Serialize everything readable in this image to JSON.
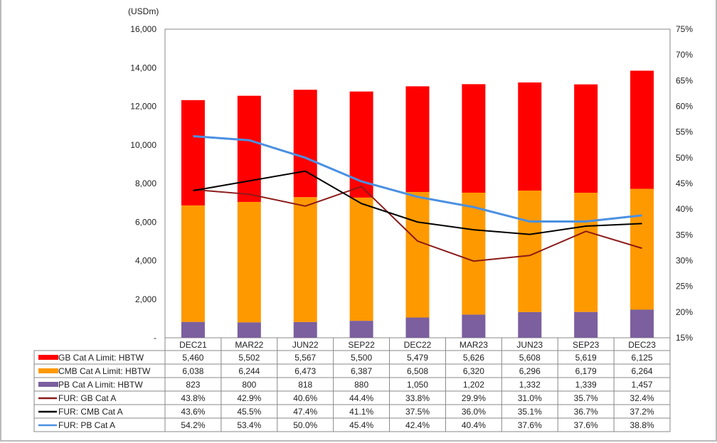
{
  "chart_data": {
    "type": "bar",
    "stacked": true,
    "unit_label": "(USDm)",
    "categories": [
      "DEC21",
      "MAR22",
      "JUN22",
      "SEP22",
      "DEC22",
      "MAR23",
      "JUN23",
      "SEP23",
      "DEC23"
    ],
    "y_left": {
      "range": [
        0,
        16000
      ],
      "ticks": [
        "-",
        "2,000",
        "4,000",
        "6,000",
        "8,000",
        "10,000",
        "12,000",
        "14,000",
        "16,000"
      ],
      "tick_values": [
        0,
        2000,
        4000,
        6000,
        8000,
        10000,
        12000,
        14000,
        16000
      ]
    },
    "y_right": {
      "range": [
        15,
        75
      ],
      "ticks": [
        "15%",
        "20%",
        "25%",
        "30%",
        "35%",
        "40%",
        "45%",
        "50%",
        "55%",
        "60%",
        "65%",
        "70%",
        "75%"
      ],
      "tick_values": [
        15,
        20,
        25,
        30,
        35,
        40,
        45,
        50,
        55,
        60,
        65,
        70,
        75
      ]
    },
    "grid": false,
    "legend": "data-table-below",
    "bar_series": [
      {
        "name": "PB Cat A Limit: HBTW",
        "color": "#7b5f9e",
        "values": [
          823,
          800,
          818,
          880,
          1050,
          1202,
          1332,
          1339,
          1457
        ],
        "labels": [
          "823",
          "800",
          "818",
          "880",
          "1,050",
          "1,202",
          "1,332",
          "1,339",
          "1,457"
        ]
      },
      {
        "name": "CMB Cat A Limit: HBTW",
        "color": "#ff9900",
        "values": [
          6038,
          6244,
          6473,
          6387,
          6508,
          6320,
          6296,
          6179,
          6264
        ],
        "labels": [
          "6,038",
          "6,244",
          "6,473",
          "6,387",
          "6,508",
          "6,320",
          "6,296",
          "6,179",
          "6,264"
        ]
      },
      {
        "name": "GB Cat A Limit: HBTW",
        "color": "#ff0000",
        "values": [
          5460,
          5502,
          5567,
          5500,
          5479,
          5626,
          5608,
          5619,
          6125
        ],
        "labels": [
          "5,460",
          "5,502",
          "5,567",
          "5,500",
          "5,479",
          "5,626",
          "5,608",
          "5,619",
          "6,125"
        ]
      }
    ],
    "line_series": [
      {
        "name": "FUR: GB Cat A",
        "color": "#8b1a1a",
        "values": [
          43.8,
          42.9,
          40.6,
          44.4,
          33.8,
          29.9,
          31.0,
          35.7,
          32.4
        ],
        "labels": [
          "43.8%",
          "42.9%",
          "40.6%",
          "44.4%",
          "33.8%",
          "29.9%",
          "31.0%",
          "35.7%",
          "32.4%"
        ]
      },
      {
        "name": "FUR: CMB Cat A",
        "color": "#000000",
        "values": [
          43.6,
          45.5,
          47.4,
          41.1,
          37.5,
          36.0,
          35.1,
          36.7,
          37.2
        ],
        "labels": [
          "43.6%",
          "45.5%",
          "47.4%",
          "41.1%",
          "37.5%",
          "36.0%",
          "35.1%",
          "36.7%",
          "37.2%"
        ]
      },
      {
        "name": "FUR: PB Cat A",
        "color": "#4a90e2",
        "values": [
          54.2,
          53.4,
          50.0,
          45.4,
          42.4,
          40.4,
          37.6,
          37.6,
          38.8
        ],
        "labels": [
          "54.2%",
          "53.4%",
          "50.0%",
          "45.4%",
          "42.4%",
          "40.4%",
          "37.6%",
          "37.6%",
          "38.8%"
        ]
      }
    ],
    "table_row_order": [
      "GB Cat A Limit: HBTW",
      "CMB Cat A Limit: HBTW",
      "PB Cat A Limit: HBTW",
      "FUR: GB Cat A",
      "FUR: CMB Cat A",
      "FUR: PB Cat A"
    ]
  }
}
